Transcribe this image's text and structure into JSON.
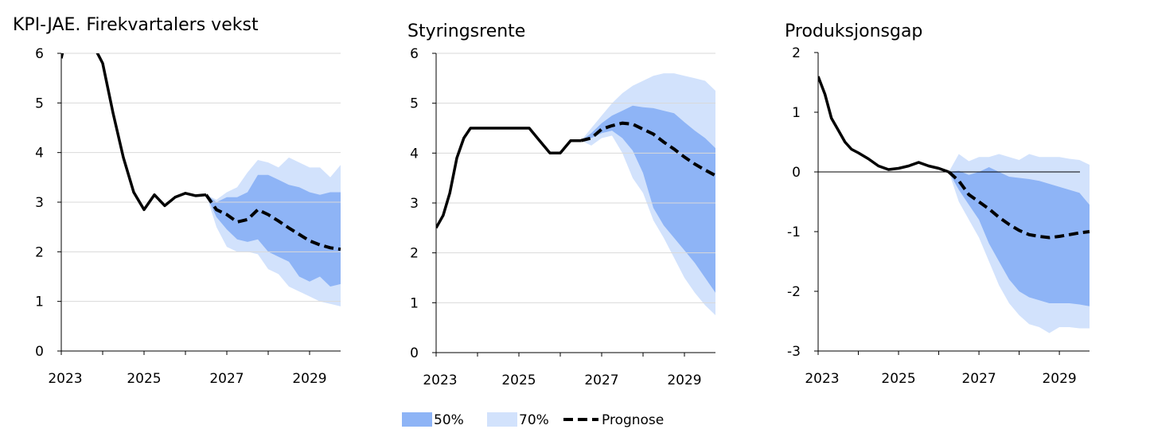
{
  "colors": {
    "band_50": "#8EB4F6",
    "band_70": "#D2E2FC",
    "history": "#000000",
    "forecast": "#000000",
    "grid": "#d9d9d9"
  },
  "legend": {
    "band_50_label": "50%",
    "band_70_label": "70%",
    "forecast_label": "Prognose"
  },
  "chart_data": [
    {
      "type": "area",
      "title": "KPI-JAE. Firekvartalers vekst",
      "ylim": [
        0,
        6
      ],
      "yticks": [
        0,
        1,
        2,
        3,
        4,
        5,
        6
      ],
      "ytick_labels": [
        "0",
        "1",
        "2",
        "3",
        "4",
        "5",
        "6"
      ],
      "xlim": [
        2023.0,
        2029.75
      ],
      "xticks": [
        2023,
        2025,
        2027,
        2029
      ],
      "xtick_labels": [
        "2023",
        "2025",
        "2027",
        "2029"
      ],
      "grid": true,
      "history": {
        "x": [
          2023.0,
          2023.08,
          2023.25,
          2023.5,
          2023.75,
          2024.0,
          2024.25,
          2024.5,
          2024.75,
          2025.0,
          2025.25,
          2025.5,
          2025.75,
          2026.0,
          2026.25,
          2026.5
        ],
        "y": [
          5.9,
          6.2,
          6.4,
          6.4,
          6.2,
          5.8,
          4.8,
          3.9,
          3.2,
          2.85,
          3.15,
          2.93,
          3.1,
          3.18,
          3.13,
          3.15
        ]
      },
      "forecast": {
        "x": [
          2026.5,
          2026.75,
          2027.0,
          2027.25,
          2027.5,
          2027.75,
          2028.0,
          2028.25,
          2028.5,
          2028.75,
          2029.0,
          2029.25,
          2029.5,
          2029.75
        ],
        "y": [
          3.15,
          2.85,
          2.75,
          2.6,
          2.65,
          2.85,
          2.75,
          2.62,
          2.48,
          2.35,
          2.22,
          2.14,
          2.08,
          2.05
        ]
      },
      "bands": {
        "x": [
          2026.5,
          2026.75,
          2027.0,
          2027.25,
          2027.5,
          2027.75,
          2028.0,
          2028.25,
          2028.5,
          2028.75,
          2029.0,
          2029.25,
          2029.5,
          2029.75
        ],
        "p50_upper": [
          3.15,
          3.0,
          3.1,
          3.1,
          3.2,
          3.55,
          3.55,
          3.45,
          3.35,
          3.3,
          3.2,
          3.15,
          3.2,
          3.2
        ],
        "p50_lower": [
          3.15,
          2.7,
          2.45,
          2.25,
          2.2,
          2.25,
          2.0,
          1.9,
          1.8,
          1.5,
          1.4,
          1.5,
          1.3,
          1.35
        ],
        "p70_upper": [
          3.15,
          3.05,
          3.2,
          3.3,
          3.6,
          3.85,
          3.8,
          3.7,
          3.9,
          3.8,
          3.7,
          3.7,
          3.5,
          3.75
        ],
        "p70_lower": [
          3.15,
          2.5,
          2.1,
          2.0,
          2.0,
          1.95,
          1.65,
          1.55,
          1.3,
          1.2,
          1.1,
          1.0,
          0.95,
          0.9
        ]
      }
    },
    {
      "type": "area",
      "title": "Styringsrente",
      "ylim": [
        0,
        6
      ],
      "yticks": [
        0,
        1,
        2,
        3,
        4,
        5,
        6
      ],
      "ytick_labels": [
        "0",
        "1",
        "2",
        "3",
        "4",
        "5",
        "6"
      ],
      "xlim": [
        2023.0,
        2029.75
      ],
      "xticks": [
        2023,
        2025,
        2027,
        2029
      ],
      "xtick_labels": [
        "2023",
        "2025",
        "2027",
        "2029"
      ],
      "grid": true,
      "history": {
        "x": [
          2023.0,
          2023.17,
          2023.33,
          2023.5,
          2023.67,
          2023.83,
          2024.0,
          2024.5,
          2025.0,
          2025.25,
          2025.5,
          2025.75,
          2026.0,
          2026.25,
          2026.5
        ],
        "y": [
          2.5,
          2.75,
          3.2,
          3.9,
          4.3,
          4.5,
          4.5,
          4.5,
          4.5,
          4.5,
          4.25,
          4.0,
          4.0,
          4.25,
          4.25
        ]
      },
      "forecast": {
        "x": [
          2026.5,
          2026.75,
          2027.0,
          2027.25,
          2027.5,
          2027.75,
          2028.0,
          2028.25,
          2028.5,
          2028.75,
          2029.0,
          2029.25,
          2029.5,
          2029.75
        ],
        "y": [
          4.25,
          4.3,
          4.48,
          4.55,
          4.6,
          4.58,
          4.48,
          4.38,
          4.22,
          4.08,
          3.92,
          3.78,
          3.66,
          3.55
        ]
      },
      "bands": {
        "x": [
          2026.5,
          2026.75,
          2027.0,
          2027.25,
          2027.5,
          2027.75,
          2028.0,
          2028.25,
          2028.5,
          2028.75,
          2029.0,
          2029.25,
          2029.5,
          2029.75
        ],
        "p50_upper": [
          4.25,
          4.4,
          4.6,
          4.75,
          4.85,
          4.95,
          4.92,
          4.9,
          4.85,
          4.8,
          4.62,
          4.45,
          4.3,
          4.1
        ],
        "p50_lower": [
          4.25,
          4.3,
          4.4,
          4.45,
          4.3,
          4.05,
          3.6,
          2.9,
          2.55,
          2.3,
          2.05,
          1.8,
          1.5,
          1.2
        ],
        "p70_upper": [
          4.25,
          4.5,
          4.75,
          5.0,
          5.2,
          5.35,
          5.45,
          5.55,
          5.6,
          5.6,
          5.55,
          5.5,
          5.45,
          5.25
        ],
        "p70_lower": [
          4.25,
          4.15,
          4.3,
          4.35,
          4.0,
          3.5,
          3.2,
          2.65,
          2.3,
          1.9,
          1.5,
          1.2,
          0.95,
          0.75
        ]
      }
    },
    {
      "type": "area",
      "title": "Produksjonsgap",
      "ylim": [
        -3,
        2
      ],
      "yticks": [
        -3,
        -2,
        -1,
        0,
        1,
        2
      ],
      "ytick_labels": [
        "-3",
        "-2",
        "-1",
        "0",
        "1",
        "2"
      ],
      "xlim": [
        2023.0,
        2029.75
      ],
      "xticks": [
        2023,
        2025,
        2027,
        2029
      ],
      "xtick_labels": [
        "2023",
        "2025",
        "2027",
        "2029"
      ],
      "grid": false,
      "zero_line": true,
      "history": {
        "x": [
          2023.0,
          2023.17,
          2023.33,
          2023.5,
          2023.67,
          2023.83,
          2024.0,
          2024.25,
          2024.5,
          2024.75,
          2025.0,
          2025.25,
          2025.5,
          2025.75,
          2026.0,
          2026.25
        ],
        "y": [
          1.6,
          1.3,
          0.9,
          0.7,
          0.5,
          0.38,
          0.32,
          0.22,
          0.1,
          0.04,
          0.06,
          0.1,
          0.16,
          0.1,
          0.06,
          0.0
        ]
      },
      "forecast": {
        "x": [
          2026.25,
          2026.5,
          2026.75,
          2027.0,
          2027.25,
          2027.5,
          2027.75,
          2028.0,
          2028.25,
          2028.5,
          2028.75,
          2029.0,
          2029.25,
          2029.5,
          2029.75
        ],
        "y": [
          0.0,
          -0.15,
          -0.38,
          -0.5,
          -0.62,
          -0.76,
          -0.88,
          -0.98,
          -1.05,
          -1.08,
          -1.1,
          -1.08,
          -1.05,
          -1.02,
          -1.0
        ]
      },
      "bands": {
        "x": [
          2026.25,
          2026.5,
          2026.75,
          2027.0,
          2027.25,
          2027.5,
          2027.75,
          2028.0,
          2028.25,
          2028.5,
          2028.75,
          2029.0,
          2029.25,
          2029.5,
          2029.75
        ],
        "p50_upper": [
          0.0,
          0.02,
          -0.05,
          0.0,
          0.08,
          0.0,
          -0.08,
          -0.1,
          -0.12,
          -0.15,
          -0.2,
          -0.25,
          -0.3,
          -0.35,
          -0.55
        ],
        "p50_lower": [
          0.0,
          -0.3,
          -0.55,
          -0.8,
          -1.2,
          -1.5,
          -1.8,
          -2.0,
          -2.1,
          -2.15,
          -2.2,
          -2.2,
          -2.2,
          -2.22,
          -2.25
        ],
        "p70_upper": [
          0.0,
          0.3,
          0.18,
          0.25,
          0.25,
          0.3,
          0.25,
          0.2,
          0.3,
          0.25,
          0.25,
          0.25,
          0.22,
          0.2,
          0.12
        ],
        "p70_lower": [
          0.0,
          -0.5,
          -0.8,
          -1.1,
          -1.5,
          -1.9,
          -2.2,
          -2.4,
          -2.55,
          -2.6,
          -2.7,
          -2.6,
          -2.6,
          -2.62,
          -2.62
        ]
      }
    }
  ]
}
